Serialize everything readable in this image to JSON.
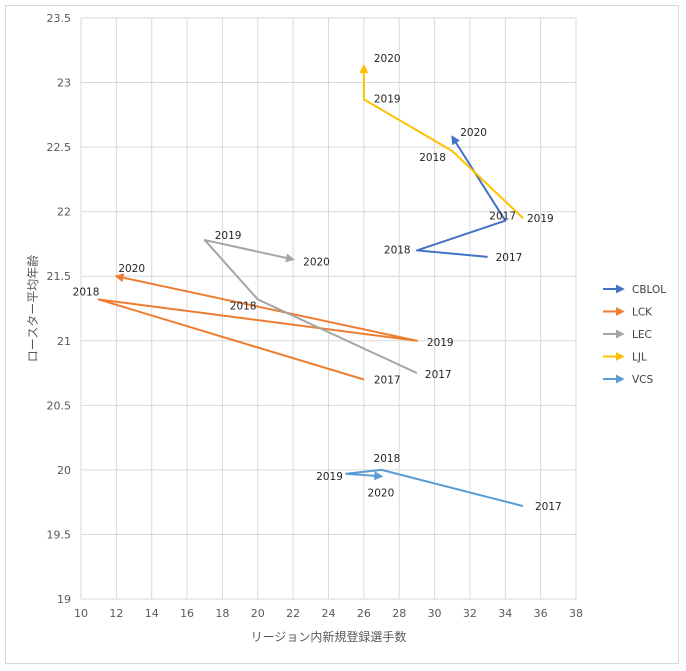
{
  "chart_data": {
    "type": "scatter",
    "xlabel": "リージョン内新規登録選手数",
    "ylabel": "ロースター平均年齢",
    "xlim": [
      10,
      38
    ],
    "ylim": [
      19,
      23.5
    ],
    "x_ticks": [
      "10",
      "12",
      "14",
      "16",
      "18",
      "20",
      "22",
      "24",
      "26",
      "28",
      "30",
      "32",
      "34",
      "36",
      "38"
    ],
    "y_ticks": [
      "19",
      "19.5",
      "20",
      "20.5",
      "21",
      "21.5",
      "22",
      "22.5",
      "23",
      "23.5"
    ],
    "grid": true,
    "legend_position": "right",
    "series": [
      {
        "name": "CBLOL",
        "color": "#4472c4",
        "points": [
          {
            "label": "2017",
            "x": 33,
            "y": 21.65
          },
          {
            "label": "2018",
            "x": 29,
            "y": 21.7
          },
          {
            "label": "2017",
            "x": 34,
            "y": 21.93
          },
          {
            "label": "2020",
            "x": 31,
            "y": 22.58
          }
        ]
      },
      {
        "name": "LCK",
        "color": "#ed7d31",
        "points": [
          {
            "label": "2017",
            "x": 26,
            "y": 20.7
          },
          {
            "label": "2018",
            "x": 11,
            "y": 21.32
          },
          {
            "label": "2019",
            "x": 29,
            "y": 21.0
          },
          {
            "label": "2020",
            "x": 12,
            "y": 21.5
          }
        ]
      },
      {
        "name": "LEC",
        "color": "#a5a5a5",
        "points": [
          {
            "label": "2017",
            "x": 29,
            "y": 20.75
          },
          {
            "label": "2018",
            "x": 20,
            "y": 21.32
          },
          {
            "label": "2019",
            "x": 17,
            "y": 21.78
          },
          {
            "label": "2020",
            "x": 22,
            "y": 21.63
          }
        ]
      },
      {
        "name": "LJL",
        "color": "#ffc000",
        "points": [
          {
            "label": "2019",
            "x": 35,
            "y": 21.95
          },
          {
            "label": "2018",
            "x": 31,
            "y": 22.47
          },
          {
            "label": "2019",
            "x": 26,
            "y": 22.87
          },
          {
            "label": "2020",
            "x": 26,
            "y": 23.13
          }
        ]
      },
      {
        "name": "VCS",
        "color": "#5b9bd5",
        "points": [
          {
            "label": "2017",
            "x": 35,
            "y": 19.72
          },
          {
            "label": "2018",
            "x": 27,
            "y": 20.0
          },
          {
            "label": "2019",
            "x": 25,
            "y": 19.97
          },
          {
            "label": "2020",
            "x": 27,
            "y": 19.95
          }
        ]
      }
    ]
  }
}
